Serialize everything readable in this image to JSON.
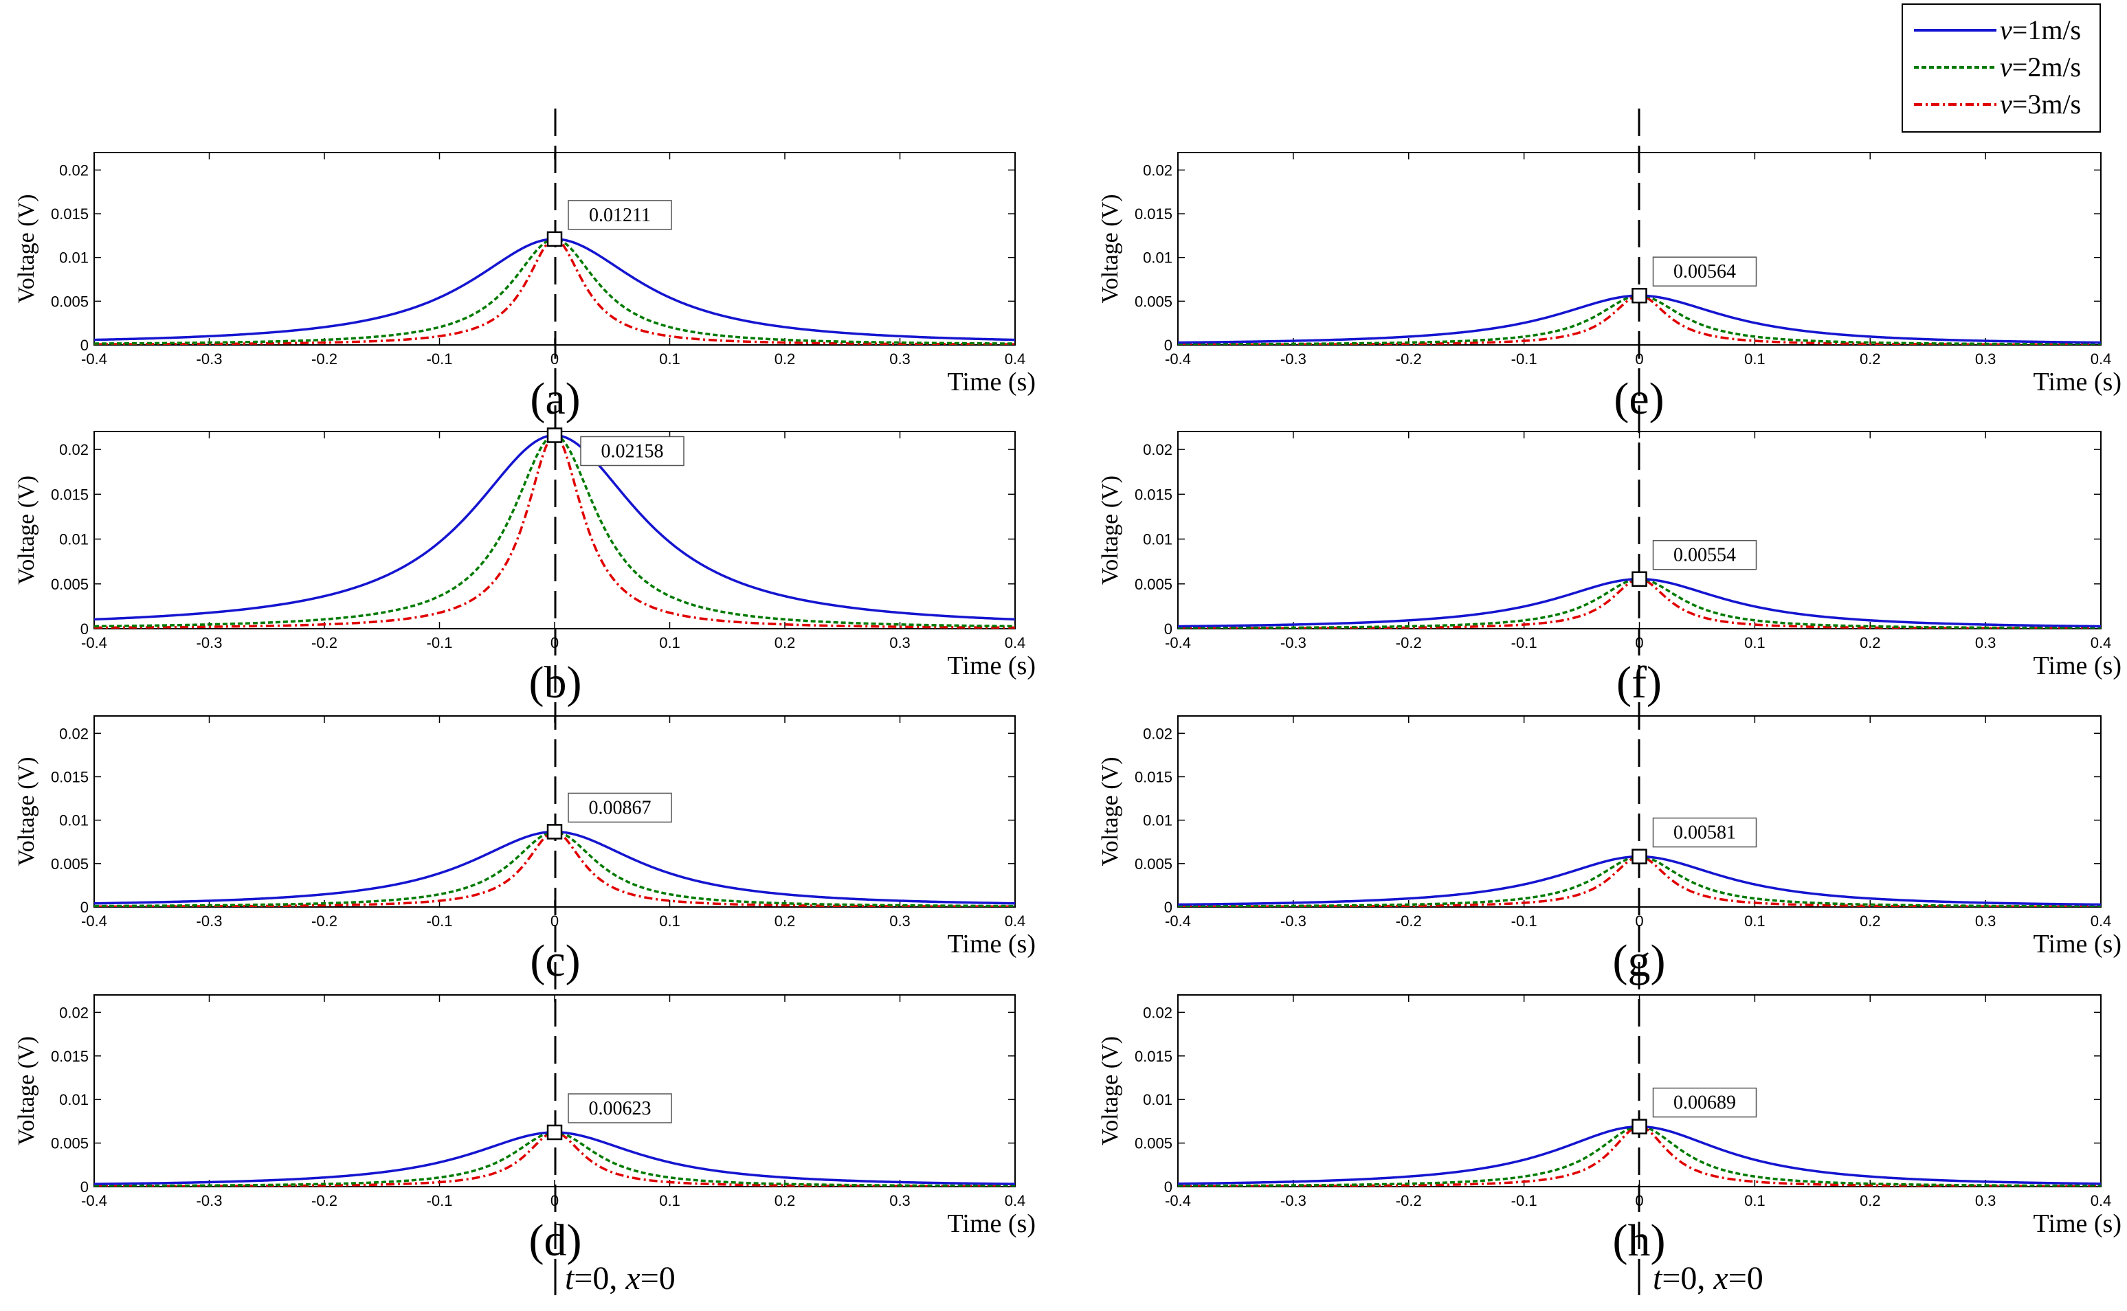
{
  "chart_data": {
    "type": "line",
    "ylabel": "Voltage (V)",
    "xlabel": "Time (s)",
    "xlim": [
      -0.4,
      0.4
    ],
    "ylim": [
      0,
      0.022
    ],
    "xticks": [
      "-0.4",
      "-0.3",
      "-0.2",
      "-0.1",
      "0",
      "0.1",
      "0.2",
      "0.3",
      "0.4"
    ],
    "yticks": [
      "0",
      "0.005",
      "0.01",
      "0.015",
      "0.02"
    ],
    "legend": {
      "placement": "top-right",
      "entries": [
        {
          "var": "v",
          "rest": "=1m/s",
          "color": "#1515d0",
          "dash": "solid"
        },
        {
          "var": "v",
          "rest": "=2m/s",
          "color": "#007a00",
          "dash": "dotted"
        },
        {
          "var": "v",
          "rest": "=3m/s",
          "color": "#e00000",
          "dash": "dashdot"
        }
      ]
    },
    "series_names": [
      "v=1m/s",
      "v=2m/s",
      "v=3m/s"
    ],
    "series_widths": [
      0.09,
      0.045,
      0.03
    ],
    "annotation": {
      "t": "t",
      "t_rest": "=0, ",
      "x": "x",
      "x_rest": "=0"
    },
    "panels": [
      {
        "label": "(a)",
        "peak": 0.01211,
        "peak_label": "0.01211",
        "callout": "right"
      },
      {
        "label": "(b)",
        "peak": 0.02158,
        "peak_label": "0.02158",
        "callout": "right-below"
      },
      {
        "label": "(c)",
        "peak": 0.00867,
        "peak_label": "0.00867",
        "callout": "right"
      },
      {
        "label": "(d)",
        "peak": 0.00623,
        "peak_label": "0.00623",
        "callout": "right"
      },
      {
        "label": "(e)",
        "peak": 0.00564,
        "peak_label": "0.00564",
        "callout": "right"
      },
      {
        "label": "(f)",
        "peak": 0.00554,
        "peak_label": "0.00554",
        "callout": "right"
      },
      {
        "label": "(g)",
        "peak": 0.00581,
        "peak_label": "0.00581",
        "callout": "right"
      },
      {
        "label": "(h)",
        "peak": 0.00689,
        "peak_label": "0.00689",
        "callout": "right"
      }
    ]
  }
}
